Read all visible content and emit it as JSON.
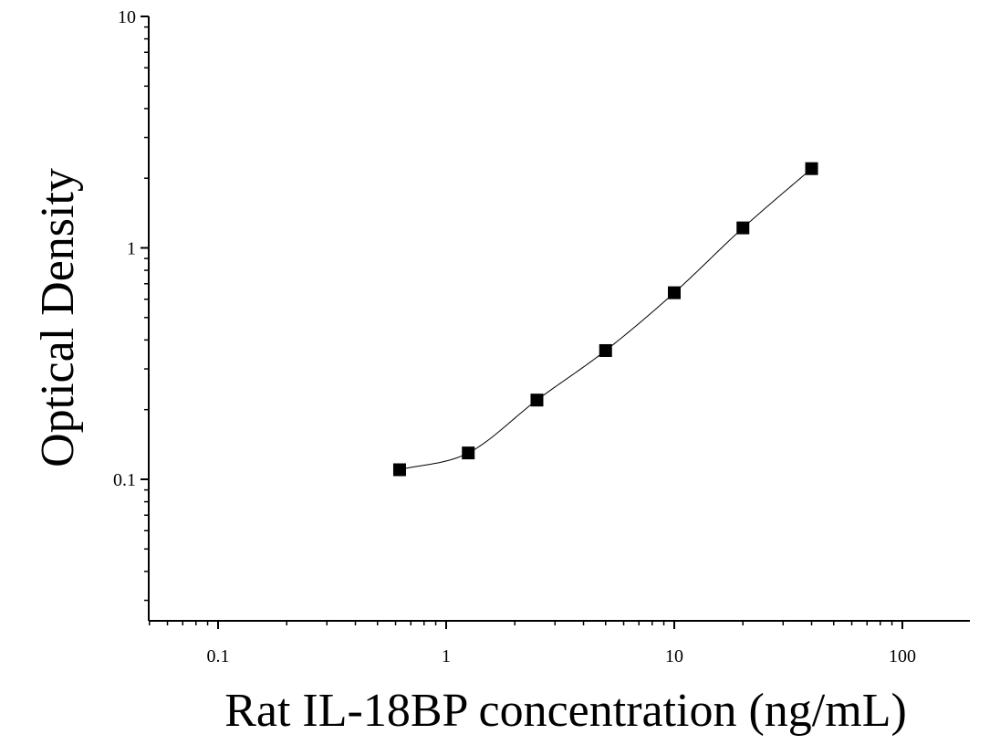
{
  "chart_data": {
    "type": "scatter",
    "title": "",
    "xlabel": "Rat IL-18BP concentration (ng/mL)",
    "ylabel": "Optical Density",
    "xscale": "log",
    "yscale": "log",
    "xlim": [
      0.05,
      200
    ],
    "ylim": [
      0.025,
      10
    ],
    "xticks": [
      {
        "value": 0.1,
        "label": "0.1"
      },
      {
        "value": 1,
        "label": "1"
      },
      {
        "value": 10,
        "label": "10"
      },
      {
        "value": 100,
        "label": "100"
      }
    ],
    "yticks": [
      {
        "value": 0.1,
        "label": "0.1"
      },
      {
        "value": 1,
        "label": "1"
      },
      {
        "value": 10,
        "label": "10"
      }
    ],
    "grid": false,
    "series": [
      {
        "marker": "square",
        "color": "#000000",
        "x": [
          0.625,
          1.25,
          2.5,
          5,
          10,
          20,
          40
        ],
        "y": [
          0.11,
          0.13,
          0.22,
          0.36,
          0.64,
          1.22,
          2.2
        ]
      }
    ],
    "fit_curve": {
      "color": "#000000",
      "x": [
        0.625,
        1.25,
        2.5,
        5,
        10,
        20,
        40
      ],
      "y": [
        0.11,
        0.13,
        0.22,
        0.36,
        0.64,
        1.22,
        2.2
      ]
    }
  }
}
